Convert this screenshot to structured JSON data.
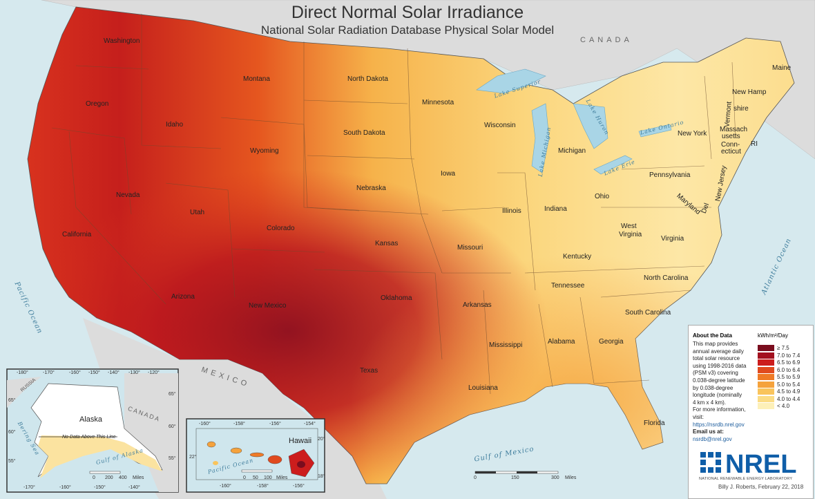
{
  "title": "Direct Normal Solar Irradiance",
  "subtitle": "National Solar Radiation Database Physical Solar Model",
  "countries": {
    "canada": "CANADA",
    "mexico": "MEXICO",
    "canada_inset": "CANADA",
    "russia": "RUSSIA"
  },
  "water": {
    "pacific": "Pacific Ocean",
    "atlantic": "Atlantic Ocean",
    "gulf_mexico": "Gulf of Mexico",
    "lake_superior": "Lake Superior",
    "lake_michigan": "Lake Michigan",
    "lake_huron": "Lake Huron",
    "lake_erie": "Lake Erie",
    "lake_ontario": "Lake Ontario"
  },
  "states": {
    "washington": "Washington",
    "oregon": "Oregon",
    "california": "California",
    "idaho": "Idaho",
    "nevada": "Nevada",
    "montana": "Montana",
    "wyoming": "Wyoming",
    "utah": "Utah",
    "arizona": "Arizona",
    "colorado": "Colorado",
    "new_mexico": "New Mexico",
    "north_dakota": "North Dakota",
    "south_dakota": "South Dakota",
    "nebraska": "Nebraska",
    "kansas": "Kansas",
    "oklahoma": "Oklahoma",
    "texas": "Texas",
    "minnesota": "Minnesota",
    "iowa": "Iowa",
    "missouri": "Missouri",
    "arkansas": "Arkansas",
    "louisiana": "Louisiana",
    "wisconsin": "Wisconsin",
    "illinois": "Illinois",
    "michigan": "Michigan",
    "indiana": "Indiana",
    "ohio": "Ohio",
    "kentucky": "Kentucky",
    "tennessee": "Tennessee",
    "mississippi": "Mississippi",
    "alabama": "Alabama",
    "georgia": "Georgia",
    "florida": "Florida",
    "south_carolina": "South Carolina",
    "north_carolina": "North Carolina",
    "virginia": "Virginia",
    "west_virginia_1": "West",
    "west_virginia_2": "Virginia",
    "pennsylvania": "Pennsylvania",
    "new_york": "New York",
    "maine": "Maine",
    "vermont": "Vermont",
    "new_hampshire_1": "New Hamp",
    "new_hampshire_2": "shire",
    "massachusetts_1": "Massach",
    "massachusetts_2": "usetts",
    "connecticut_1": "Conn-",
    "connecticut_2": "ecticut",
    "rhode_island": "RI",
    "new_jersey": "New Jersey",
    "maryland": "Maryland",
    "delaware": "Del"
  },
  "alaska_inset": {
    "label": "Alaska",
    "note": "No Data Above This Line",
    "bering_sea": "Bering Sea",
    "gulf_alaska": "Gulf of Alaska",
    "top_ticks": [
      "-180°",
      "-170°",
      "-160°",
      "-150°",
      "-140°",
      "-130°",
      "-120°"
    ],
    "bottom_ticks": [
      "-170°",
      "-160°",
      "-150°",
      "-140°"
    ],
    "left_ticks": [
      "65°",
      "60°",
      "55°"
    ],
    "right_ticks": [
      "65°",
      "60°",
      "55°"
    ],
    "scale_labels": [
      "0",
      "200",
      "400",
      "Miles"
    ]
  },
  "hawaii_inset": {
    "label": "Hawaii",
    "pacific": "Pacific Ocean",
    "top_ticks": [
      "-160°",
      "-158°",
      "-156°",
      "-154°"
    ],
    "bottom_ticks": [
      "-160°",
      "-158°",
      "-156°"
    ],
    "left_ticks": [
      "22°"
    ],
    "right_ticks": [
      "20°",
      "18°"
    ],
    "scale_labels": [
      "0",
      "50",
      "100",
      "Miles"
    ]
  },
  "main_scale": {
    "labels": [
      "0",
      "150",
      "300",
      "Miles"
    ]
  },
  "legend": {
    "header": "About the Data",
    "unit": "kWh/m²/Day",
    "text": [
      "This map provides",
      "annual average daily",
      "total solar resource",
      "using 1998-2016 data",
      "(PSM v3) covering",
      "0.038-degree latitude",
      "by 0.038-degree",
      "longitude (nominally",
      "4 km x 4 km).",
      "For more information, visit:"
    ],
    "link": "https://nsrdb.nrel.gov",
    "email_label": "Email us at:",
    "email": "nsrdb@nrel.gov",
    "classes": [
      {
        "label": "≥ 7.5",
        "color": "#7a0d1e"
      },
      {
        "label": "7.0 to 7.4",
        "color": "#a3101f"
      },
      {
        "label": "6.5 to 6.9",
        "color": "#cc1d1d"
      },
      {
        "label": "6.0 to 6.4",
        "color": "#e04a1e"
      },
      {
        "label": "5.5 to 5.9",
        "color": "#ef7a26"
      },
      {
        "label": "5.0 to 5.4",
        "color": "#f5a23c"
      },
      {
        "label": "4.5 to 4.9",
        "color": "#f9c45c"
      },
      {
        "label": "4.0 to 4.4",
        "color": "#fbdc85"
      },
      {
        "label": "< 4.0",
        "color": "#fdf0b8"
      }
    ]
  },
  "logo": {
    "text": "NREL",
    "name": "NATIONAL RENEWABLE ENERGY LABORATORY",
    "color": "#0f5ea8"
  },
  "credit": "Billy J. Roberts, February 22, 2018"
}
